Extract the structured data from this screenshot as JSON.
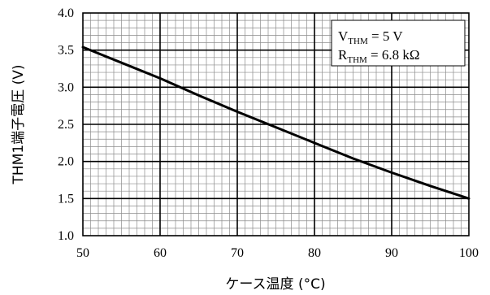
{
  "chart_data": {
    "type": "line",
    "title": "",
    "xlabel": "ケース温度 (°C)",
    "ylabel": "THM1端子電圧 (V)",
    "xlim": [
      50,
      100
    ],
    "ylim": [
      1.0,
      4.0
    ],
    "x_ticks": [
      "50",
      "60",
      "70",
      "80",
      "90",
      "100"
    ],
    "y_ticks": [
      "1.0",
      "1.5",
      "2.0",
      "2.5",
      "3.0",
      "3.5",
      "4.0"
    ],
    "grid": true,
    "series": [
      {
        "x": [
          50,
          55,
          60,
          65,
          70,
          75,
          80,
          85,
          90,
          95,
          100
        ],
        "y": [
          3.54,
          3.33,
          3.12,
          2.89,
          2.67,
          2.46,
          2.25,
          2.04,
          1.85,
          1.67,
          1.5
        ]
      }
    ],
    "annotation": {
      "line1": {
        "main": "V",
        "sub": "THM",
        "rest": " = 5 V"
      },
      "line2": {
        "main": "R",
        "sub": "THM",
        "rest": " = 6.8 kΩ"
      }
    }
  }
}
